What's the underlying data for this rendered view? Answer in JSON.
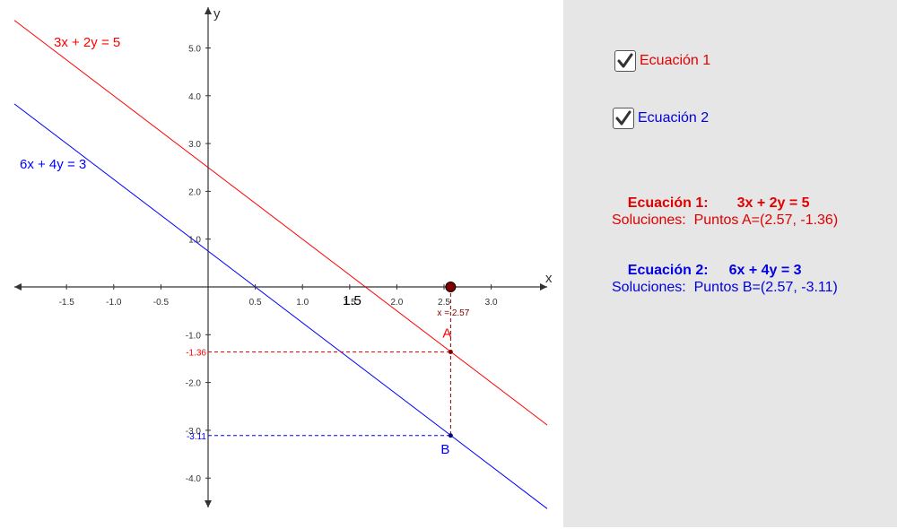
{
  "graph": {
    "axis_x_label": "x",
    "axis_y_label": "y",
    "x_ticks": [
      "-1.5",
      "-1.0",
      "-0.5",
      "0.5",
      "1.0",
      "1.5",
      "2.0",
      "2.5",
      "3.0"
    ],
    "y_ticks": [
      "5.0",
      "4.0",
      "3.0",
      "2.0",
      "1.0",
      "-1.0",
      "-2.0",
      "-3.0",
      "-4.0"
    ],
    "x_ticks_values": [
      -1.5,
      -1.0,
      -0.5,
      0.5,
      1.0,
      1.5,
      2.0,
      2.5,
      3.0
    ],
    "y_ticks_values": [
      5,
      4,
      3,
      2,
      1,
      -1,
      -2,
      -3,
      -4
    ],
    "x_range": [
      -2.2,
      3.6
    ],
    "y_range": [
      -4.6,
      5.8
    ],
    "line1": {
      "equation": "3x + 2y = 5",
      "a": 3,
      "b": 2,
      "c": 5,
      "color": "#ff0000"
    },
    "line2": {
      "equation": "6x + 4y = 3",
      "a": 6,
      "b": 4,
      "c": 3,
      "color": "#0000ff"
    },
    "slider_point": {
      "x": 2.57,
      "label": "x = 2.57",
      "color": "#800000"
    },
    "point_A": {
      "label": "A",
      "x": 2.57,
      "y": -1.36,
      "y_label": "-1.36"
    },
    "point_B": {
      "label": "B",
      "x": 2.57,
      "y": -3.11,
      "y_label": "-3.11"
    },
    "marker_label": "1.5"
  },
  "panel": {
    "checkbox1": {
      "label": "Ecuación 1",
      "checked": true
    },
    "checkbox2": {
      "label": "Ecuación 2",
      "checked": true
    },
    "eq1": {
      "title": "Ecuación 1:",
      "equation": "3x + 2y = 5",
      "solutions": "Soluciones:  Puntos A=(2.57, -1.36)"
    },
    "eq2": {
      "title": "Ecuación 2:",
      "equation": "6x + 4y = 3",
      "solutions": "Soluciones:  Puntos B=(2.57, -3.11)"
    },
    "colors": {
      "red": "#e00000",
      "blue": "#0000e0",
      "panel_bg": "#e6e6e6"
    }
  }
}
